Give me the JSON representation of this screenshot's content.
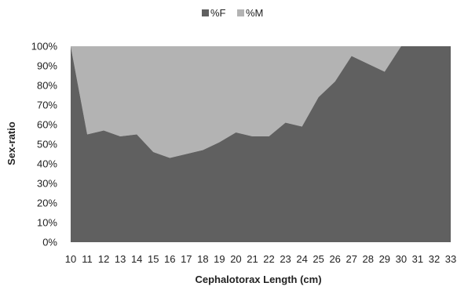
{
  "chart_data": {
    "type": "area",
    "stacked": true,
    "normalized_percent": true,
    "x": [
      10,
      11,
      12,
      13,
      14,
      15,
      16,
      17,
      18,
      19,
      20,
      21,
      22,
      23,
      24,
      25,
      26,
      27,
      28,
      29,
      30,
      31,
      32,
      33
    ],
    "series": [
      {
        "name": "%F",
        "color": "#606060",
        "values": [
          100,
          55,
          57,
          54,
          55,
          46,
          43,
          45,
          47,
          51,
          56,
          54,
          54,
          61,
          59,
          74,
          82,
          95,
          91,
          87,
          100,
          100,
          100,
          100
        ]
      },
      {
        "name": "%M",
        "color": "#b3b3b3",
        "values": [
          0,
          45,
          43,
          46,
          45,
          54,
          57,
          55,
          53,
          49,
          44,
          46,
          46,
          39,
          41,
          26,
          18,
          5,
          9,
          13,
          0,
          0,
          0,
          0
        ]
      }
    ],
    "xlabel": "Cephalotorax Length (cm)",
    "ylabel": "Sex-ratio",
    "ylim": [
      0,
      100
    ],
    "yticks": [
      "0%",
      "10%",
      "20%",
      "30%",
      "40%",
      "50%",
      "60%",
      "70%",
      "80%",
      "90%",
      "100%"
    ],
    "legend_position": "top-center",
    "grid": false
  }
}
